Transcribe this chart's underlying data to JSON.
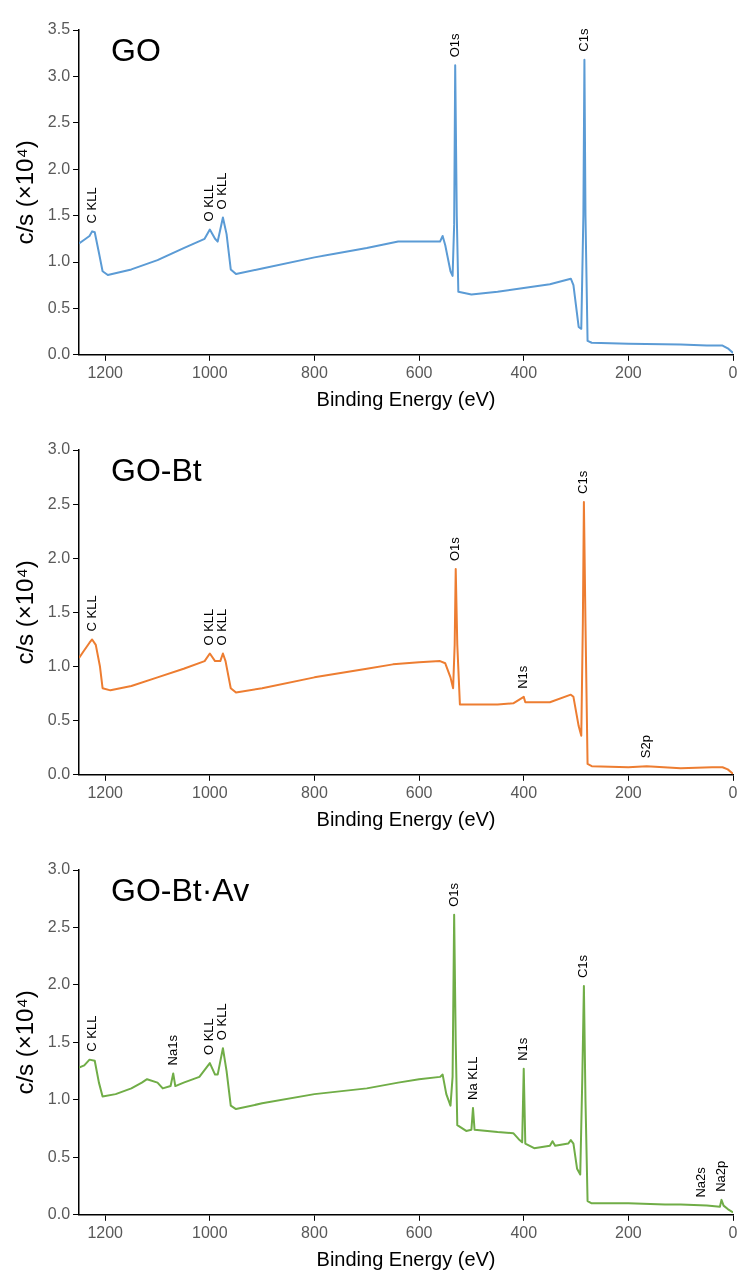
{
  "chart_data": [
    {
      "type": "line",
      "title": "GO",
      "xlabel": "Binding Energy (eV)",
      "ylabel": "c/s (×10⁴)",
      "xlim": [
        1250,
        0
      ],
      "xticks": [
        1200,
        1000,
        800,
        600,
        400,
        200,
        0
      ],
      "ylim": [
        0,
        3.5
      ],
      "yticks": [
        {
          "value": 0,
          "label": "0.0"
        },
        0.5,
        {
          "value": 1,
          "label": "1.0"
        },
        1.5,
        {
          "value": 2,
          "label": "2.0"
        },
        2.5,
        {
          "value": 3,
          "label": "3.0"
        },
        3.5
      ],
      "grid": false,
      "legend": false,
      "x": [
        1250,
        1240,
        1230,
        1225,
        1220,
        1212,
        1205,
        1195,
        1150,
        1100,
        1050,
        1010,
        1000,
        990,
        985,
        975,
        968,
        960,
        950,
        900,
        800,
        700,
        640,
        600,
        560,
        555,
        550,
        540,
        536,
        533,
        531,
        528,
        525,
        500,
        450,
        400,
        350,
        310,
        305,
        295,
        290,
        286,
        284,
        282,
        278,
        270,
        200,
        100,
        50,
        20,
        10,
        0
      ],
      "series": [
        {
          "color": "#5b9bd5",
          "values": [
            1.2,
            1.24,
            1.28,
            1.33,
            1.32,
            1.1,
            0.9,
            0.86,
            0.92,
            1.02,
            1.15,
            1.25,
            1.35,
            1.25,
            1.22,
            1.48,
            1.3,
            0.92,
            0.87,
            0.93,
            1.05,
            1.15,
            1.22,
            1.22,
            1.22,
            1.28,
            1.18,
            0.9,
            0.85,
            1.4,
            3.12,
            1.5,
            0.68,
            0.65,
            0.68,
            0.72,
            0.76,
            0.82,
            0.75,
            0.3,
            0.28,
            1.5,
            3.18,
            1.5,
            0.15,
            0.13,
            0.12,
            0.11,
            0.1,
            0.1,
            0.07,
            0.02
          ]
        }
      ],
      "annotations": [
        {
          "text": "C KLL",
          "x": 1225,
          "y": 1.33
        },
        {
          "text": "O KLL",
          "x": 1000,
          "y": 1.35
        },
        {
          "text": "O KLL",
          "x": 975,
          "y": 1.48
        },
        {
          "text": "O1s",
          "x": 531,
          "y": 3.12
        },
        {
          "text": "C1s",
          "x": 284,
          "y": 3.18
        }
      ]
    },
    {
      "type": "line",
      "title": "GO-Bt",
      "xlabel": "Binding Energy (eV)",
      "ylabel": "c/s (×10⁴)",
      "xlim": [
        1250,
        0
      ],
      "xticks": [
        1200,
        1000,
        800,
        600,
        400,
        200,
        0
      ],
      "ylim": [
        0,
        3.0
      ],
      "yticks": [
        {
          "value": 0,
          "label": "0.0"
        },
        0.5,
        {
          "value": 1,
          "label": "1.0"
        },
        1.5,
        {
          "value": 2,
          "label": "2.0"
        },
        2.5,
        {
          "value": 3,
          "label": "3.0"
        }
      ],
      "grid": false,
      "legend": false,
      "x": [
        1250,
        1240,
        1230,
        1225,
        1218,
        1210,
        1205,
        1190,
        1150,
        1100,
        1050,
        1010,
        1000,
        990,
        980,
        975,
        970,
        960,
        950,
        900,
        800,
        700,
        650,
        600,
        560,
        550,
        540,
        535,
        532,
        530,
        527,
        522,
        500,
        450,
        420,
        400,
        397,
        350,
        310,
        305,
        295,
        290,
        287,
        285,
        282,
        278,
        270,
        200,
        165,
        100,
        40,
        20,
        10,
        0
      ],
      "series": [
        {
          "color": "#ed7d31",
          "values": [
            1.08,
            1.15,
            1.22,
            1.25,
            1.2,
            1.0,
            0.8,
            0.78,
            0.82,
            0.9,
            0.98,
            1.05,
            1.12,
            1.05,
            1.05,
            1.12,
            1.05,
            0.8,
            0.76,
            0.8,
            0.9,
            0.98,
            1.02,
            1.04,
            1.05,
            1.03,
            0.9,
            0.8,
            1.2,
            1.9,
            1.2,
            0.65,
            0.65,
            0.65,
            0.66,
            0.72,
            0.67,
            0.67,
            0.74,
            0.72,
            0.45,
            0.36,
            1.4,
            2.52,
            1.4,
            0.1,
            0.08,
            0.07,
            0.08,
            0.06,
            0.07,
            0.07,
            0.05,
            0.01
          ]
        }
      ],
      "annotations": [
        {
          "text": "C KLL",
          "x": 1225,
          "y": 1.25
        },
        {
          "text": "O KLL",
          "x": 1000,
          "y": 1.12
        },
        {
          "text": "O KLL",
          "x": 975,
          "y": 1.12
        },
        {
          "text": "O1s",
          "x": 530,
          "y": 1.9
        },
        {
          "text": "N1s",
          "x": 400,
          "y": 0.72
        },
        {
          "text": "C1s",
          "x": 285,
          "y": 2.52
        },
        {
          "text": "S2p",
          "x": 165,
          "y": 0.08
        }
      ]
    },
    {
      "type": "line",
      "title": "GO-Bt·Av",
      "xlabel": "Binding Energy (eV)",
      "ylabel": "c/s (×10⁴)",
      "xlim": [
        1250,
        0
      ],
      "xticks": [
        1200,
        1000,
        800,
        600,
        400,
        200,
        0
      ],
      "ylim": [
        0,
        3.0
      ],
      "yticks": [
        {
          "value": 0,
          "label": "0.0"
        },
        0.5,
        {
          "value": 1,
          "label": "1.0"
        },
        1.5,
        {
          "value": 2,
          "label": "2.0"
        },
        2.5,
        {
          "value": 3,
          "label": "3.0"
        }
      ],
      "grid": false,
      "legend": false,
      "x": [
        1250,
        1240,
        1230,
        1220,
        1212,
        1205,
        1180,
        1150,
        1130,
        1120,
        1100,
        1090,
        1075,
        1070,
        1066,
        1050,
        1020,
        1000,
        990,
        985,
        975,
        968,
        960,
        950,
        900,
        800,
        700,
        640,
        600,
        560,
        555,
        548,
        540,
        536,
        533,
        530,
        527,
        510,
        500,
        497,
        494,
        450,
        420,
        410,
        403,
        400,
        397,
        380,
        350,
        345,
        340,
        315,
        310,
        305,
        298,
        292,
        288,
        285,
        282,
        278,
        270,
        200,
        130,
        100,
        50,
        25,
        22,
        18,
        10,
        0
      ],
      "series": [
        {
          "color": "#70ad47",
          "values": [
            1.28,
            1.3,
            1.35,
            1.34,
            1.15,
            1.03,
            1.05,
            1.1,
            1.15,
            1.18,
            1.15,
            1.1,
            1.12,
            1.23,
            1.12,
            1.15,
            1.2,
            1.32,
            1.22,
            1.22,
            1.45,
            1.25,
            0.95,
            0.92,
            0.97,
            1.05,
            1.1,
            1.15,
            1.18,
            1.2,
            1.22,
            1.05,
            0.95,
            1.2,
            2.61,
            1.5,
            0.78,
            0.73,
            0.74,
            0.93,
            0.74,
            0.72,
            0.71,
            0.66,
            0.63,
            1.27,
            0.62,
            0.58,
            0.6,
            0.64,
            0.6,
            0.62,
            0.65,
            0.62,
            0.4,
            0.35,
            1.2,
            1.99,
            1.0,
            0.12,
            0.1,
            0.1,
            0.09,
            0.09,
            0.08,
            0.07,
            0.13,
            0.08,
            0.05,
            0.02
          ]
        }
      ],
      "annotations": [
        {
          "text": "C KLL",
          "x": 1225,
          "y": 1.35
        },
        {
          "text": "Na1s",
          "x": 1070,
          "y": 1.23
        },
        {
          "text": "O KLL",
          "x": 1000,
          "y": 1.32
        },
        {
          "text": "O KLL",
          "x": 975,
          "y": 1.45
        },
        {
          "text": "O1s",
          "x": 533,
          "y": 2.61
        },
        {
          "text": "Na KLL",
          "x": 497,
          "y": 0.93
        },
        {
          "text": "N1s",
          "x": 400,
          "y": 1.27
        },
        {
          "text": "C1s",
          "x": 285,
          "y": 1.99
        },
        {
          "text": "Na2s",
          "x": 60,
          "y": 0.08
        },
        {
          "text": "Na2p",
          "x": 22,
          "y": 0.13
        }
      ]
    }
  ]
}
